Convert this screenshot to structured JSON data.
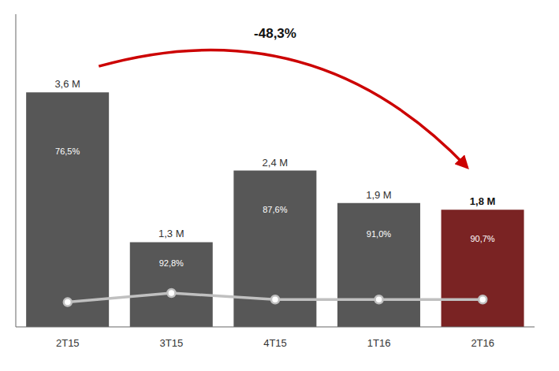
{
  "chart_data": {
    "type": "bar",
    "categories": [
      "2T15",
      "3T15",
      "4T15",
      "1T16",
      "2T16"
    ],
    "values": [
      3.6,
      1.3,
      2.4,
      1.9,
      1.8
    ],
    "value_labels": [
      "3,6 M",
      "1,3 M",
      "2,4 M",
      "1,9 M",
      "1,8 M"
    ],
    "data_labels": true,
    "colors": [
      "#575757",
      "#575757",
      "#575757",
      "#575757",
      "#7a2323"
    ],
    "shares": [
      76.5,
      92.8,
      87.6,
      91.0,
      90.7
    ],
    "share_labels": [
      "76,5%",
      "92,8%",
      "87,6%",
      "91,0%",
      "90,7%"
    ],
    "line_values": [
      0.38,
      0.52,
      0.42,
      0.42,
      0.42
    ],
    "line_color": "#c0c0c0",
    "annotations": [
      "-48,3%"
    ],
    "arrow_color": "#cc0000",
    "ylim": [
      0,
      4.8
    ],
    "tick_labels": "x",
    "grid": false
  }
}
